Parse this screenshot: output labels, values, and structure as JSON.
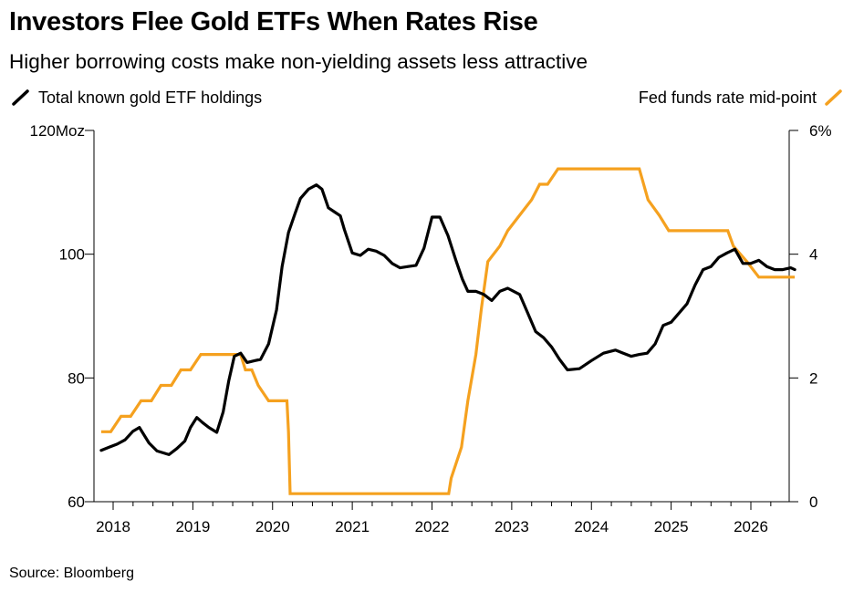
{
  "header": {
    "title": "Investors Flee Gold ETFs When Rates Rise",
    "subtitle": "Higher borrowing costs make non-yielding assets less attractive"
  },
  "legend": {
    "left_label": "Total known gold ETF holdings",
    "right_label": "Fed funds rate mid-point"
  },
  "footer": {
    "source": "Source: Bloomberg"
  },
  "colors": {
    "holdings": "#000000",
    "fed_rate": "#f5a11f",
    "axis": "#000000"
  },
  "chart_data": {
    "type": "line",
    "title": "Investors Flee Gold ETFs When Rates Rise",
    "subtitle": "Higher borrowing costs make non-yielding assets less attractive",
    "x_ticks": [
      "2018",
      "2019",
      "2020",
      "2021",
      "2022",
      "2023",
      "2024",
      "2025",
      "2026"
    ],
    "xlim": [
      2017.85,
      2026.65
    ],
    "y_left": {
      "ticks": [
        "120Moz",
        "100",
        "80",
        "60"
      ],
      "tick_values": [
        120,
        100,
        80,
        60
      ],
      "ylim": [
        60,
        120
      ]
    },
    "y_right": {
      "ticks": [
        "6%",
        "4",
        "2",
        "0"
      ],
      "tick_values": [
        6,
        4,
        2,
        0
      ],
      "ylim": [
        0,
        6
      ]
    },
    "grid": false,
    "series": [
      {
        "name": "Total known gold ETF holdings",
        "axis": "left",
        "x": [
          2017.85,
          2017.95,
          2018.05,
          2018.15,
          2018.25,
          2018.33,
          2018.45,
          2018.55,
          2018.7,
          2018.8,
          2018.9,
          2018.97,
          2019.05,
          2019.12,
          2019.2,
          2019.3,
          2019.38,
          2019.45,
          2019.52,
          2019.6,
          2019.68,
          2019.78,
          2019.85,
          2019.95,
          2020.05,
          2020.12,
          2020.2,
          2020.28,
          2020.35,
          2020.45,
          2020.55,
          2020.62,
          2020.7,
          2020.78,
          2020.85,
          2020.9,
          2021.0,
          2021.1,
          2021.2,
          2021.3,
          2021.4,
          2021.5,
          2021.6,
          2021.7,
          2021.8,
          2021.9,
          2022.0,
          2022.1,
          2022.2,
          2022.3,
          2022.38,
          2022.45,
          2022.55,
          2022.65,
          2022.75,
          2022.85,
          2022.95,
          2023.1,
          2023.2,
          2023.3,
          2023.4,
          2023.5,
          2023.6,
          2023.7,
          2023.85,
          2024.0,
          2024.15,
          2024.3,
          2024.4,
          2024.5,
          2024.6,
          2024.7,
          2024.8,
          2024.9,
          2025.0,
          2025.1,
          2025.2,
          2025.3,
          2025.4,
          2025.5,
          2025.6,
          2025.7,
          2025.8,
          2025.9,
          2026.0,
          2026.1,
          2026.2,
          2026.3,
          2026.4,
          2026.5,
          2026.55
        ],
        "values": [
          68.3,
          68.8,
          69.3,
          70.0,
          71.4,
          72.0,
          69.5,
          68.2,
          67.6,
          68.6,
          69.8,
          72.0,
          73.6,
          72.8,
          72.0,
          71.2,
          74.5,
          79.5,
          83.5,
          84.0,
          82.5,
          82.8,
          83.0,
          85.5,
          91.0,
          98.0,
          103.5,
          106.5,
          109.0,
          110.5,
          111.2,
          110.5,
          107.5,
          106.8,
          106.2,
          104.0,
          100.2,
          99.8,
          100.8,
          100.5,
          99.8,
          98.5,
          97.8,
          98.0,
          98.2,
          101.0,
          106.0,
          106.0,
          103.0,
          99.0,
          96.0,
          94.0,
          94.0,
          93.5,
          92.5,
          94.0,
          94.5,
          93.5,
          90.5,
          87.5,
          86.5,
          85.0,
          83.0,
          81.3,
          81.5,
          82.8,
          84.0,
          84.5,
          84.0,
          83.5,
          83.8,
          84.0,
          85.5,
          88.5,
          89.0,
          90.5,
          92.0,
          95.0,
          97.5,
          98.0,
          99.5,
          100.2,
          100.8,
          98.5,
          98.5,
          99.0,
          98.0,
          97.5,
          97.5,
          97.8,
          97.5
        ]
      },
      {
        "name": "Fed funds rate mid-point",
        "axis": "right",
        "x": [
          2017.85,
          2017.97,
          2018.1,
          2018.22,
          2018.35,
          2018.48,
          2018.6,
          2018.73,
          2018.85,
          2018.97,
          2019.1,
          2019.22,
          2019.35,
          2019.48,
          2019.6,
          2019.66,
          2019.74,
          2019.82,
          2019.95,
          2020.08,
          2020.18,
          2020.2,
          2020.22,
          2020.3,
          2020.5,
          2020.7,
          2020.9,
          2021.1,
          2021.3,
          2021.5,
          2021.7,
          2021.9,
          2022.1,
          2022.21,
          2022.24,
          2022.37,
          2022.45,
          2022.55,
          2022.62,
          2022.7,
          2022.85,
          2022.95,
          2023.1,
          2023.25,
          2023.35,
          2023.45,
          2023.58,
          2023.8,
          2024.0,
          2024.2,
          2024.4,
          2024.6,
          2024.71,
          2024.85,
          2024.97,
          2025.1,
          2025.3,
          2025.5,
          2025.71,
          2025.78,
          2025.95,
          2026.1,
          2026.3,
          2026.55
        ],
        "values": [
          1.13,
          1.13,
          1.38,
          1.38,
          1.63,
          1.63,
          1.88,
          1.88,
          2.13,
          2.13,
          2.38,
          2.38,
          2.38,
          2.38,
          2.38,
          2.13,
          2.13,
          1.88,
          1.63,
          1.63,
          1.63,
          1.13,
          0.13,
          0.13,
          0.13,
          0.13,
          0.13,
          0.13,
          0.13,
          0.13,
          0.13,
          0.13,
          0.13,
          0.13,
          0.38,
          0.88,
          1.63,
          2.38,
          3.13,
          3.88,
          4.13,
          4.38,
          4.63,
          4.88,
          5.13,
          5.13,
          5.38,
          5.38,
          5.38,
          5.38,
          5.38,
          5.38,
          4.88,
          4.63,
          4.38,
          4.38,
          4.38,
          4.38,
          4.38,
          4.13,
          3.88,
          3.63,
          3.63,
          3.63
        ]
      }
    ]
  }
}
